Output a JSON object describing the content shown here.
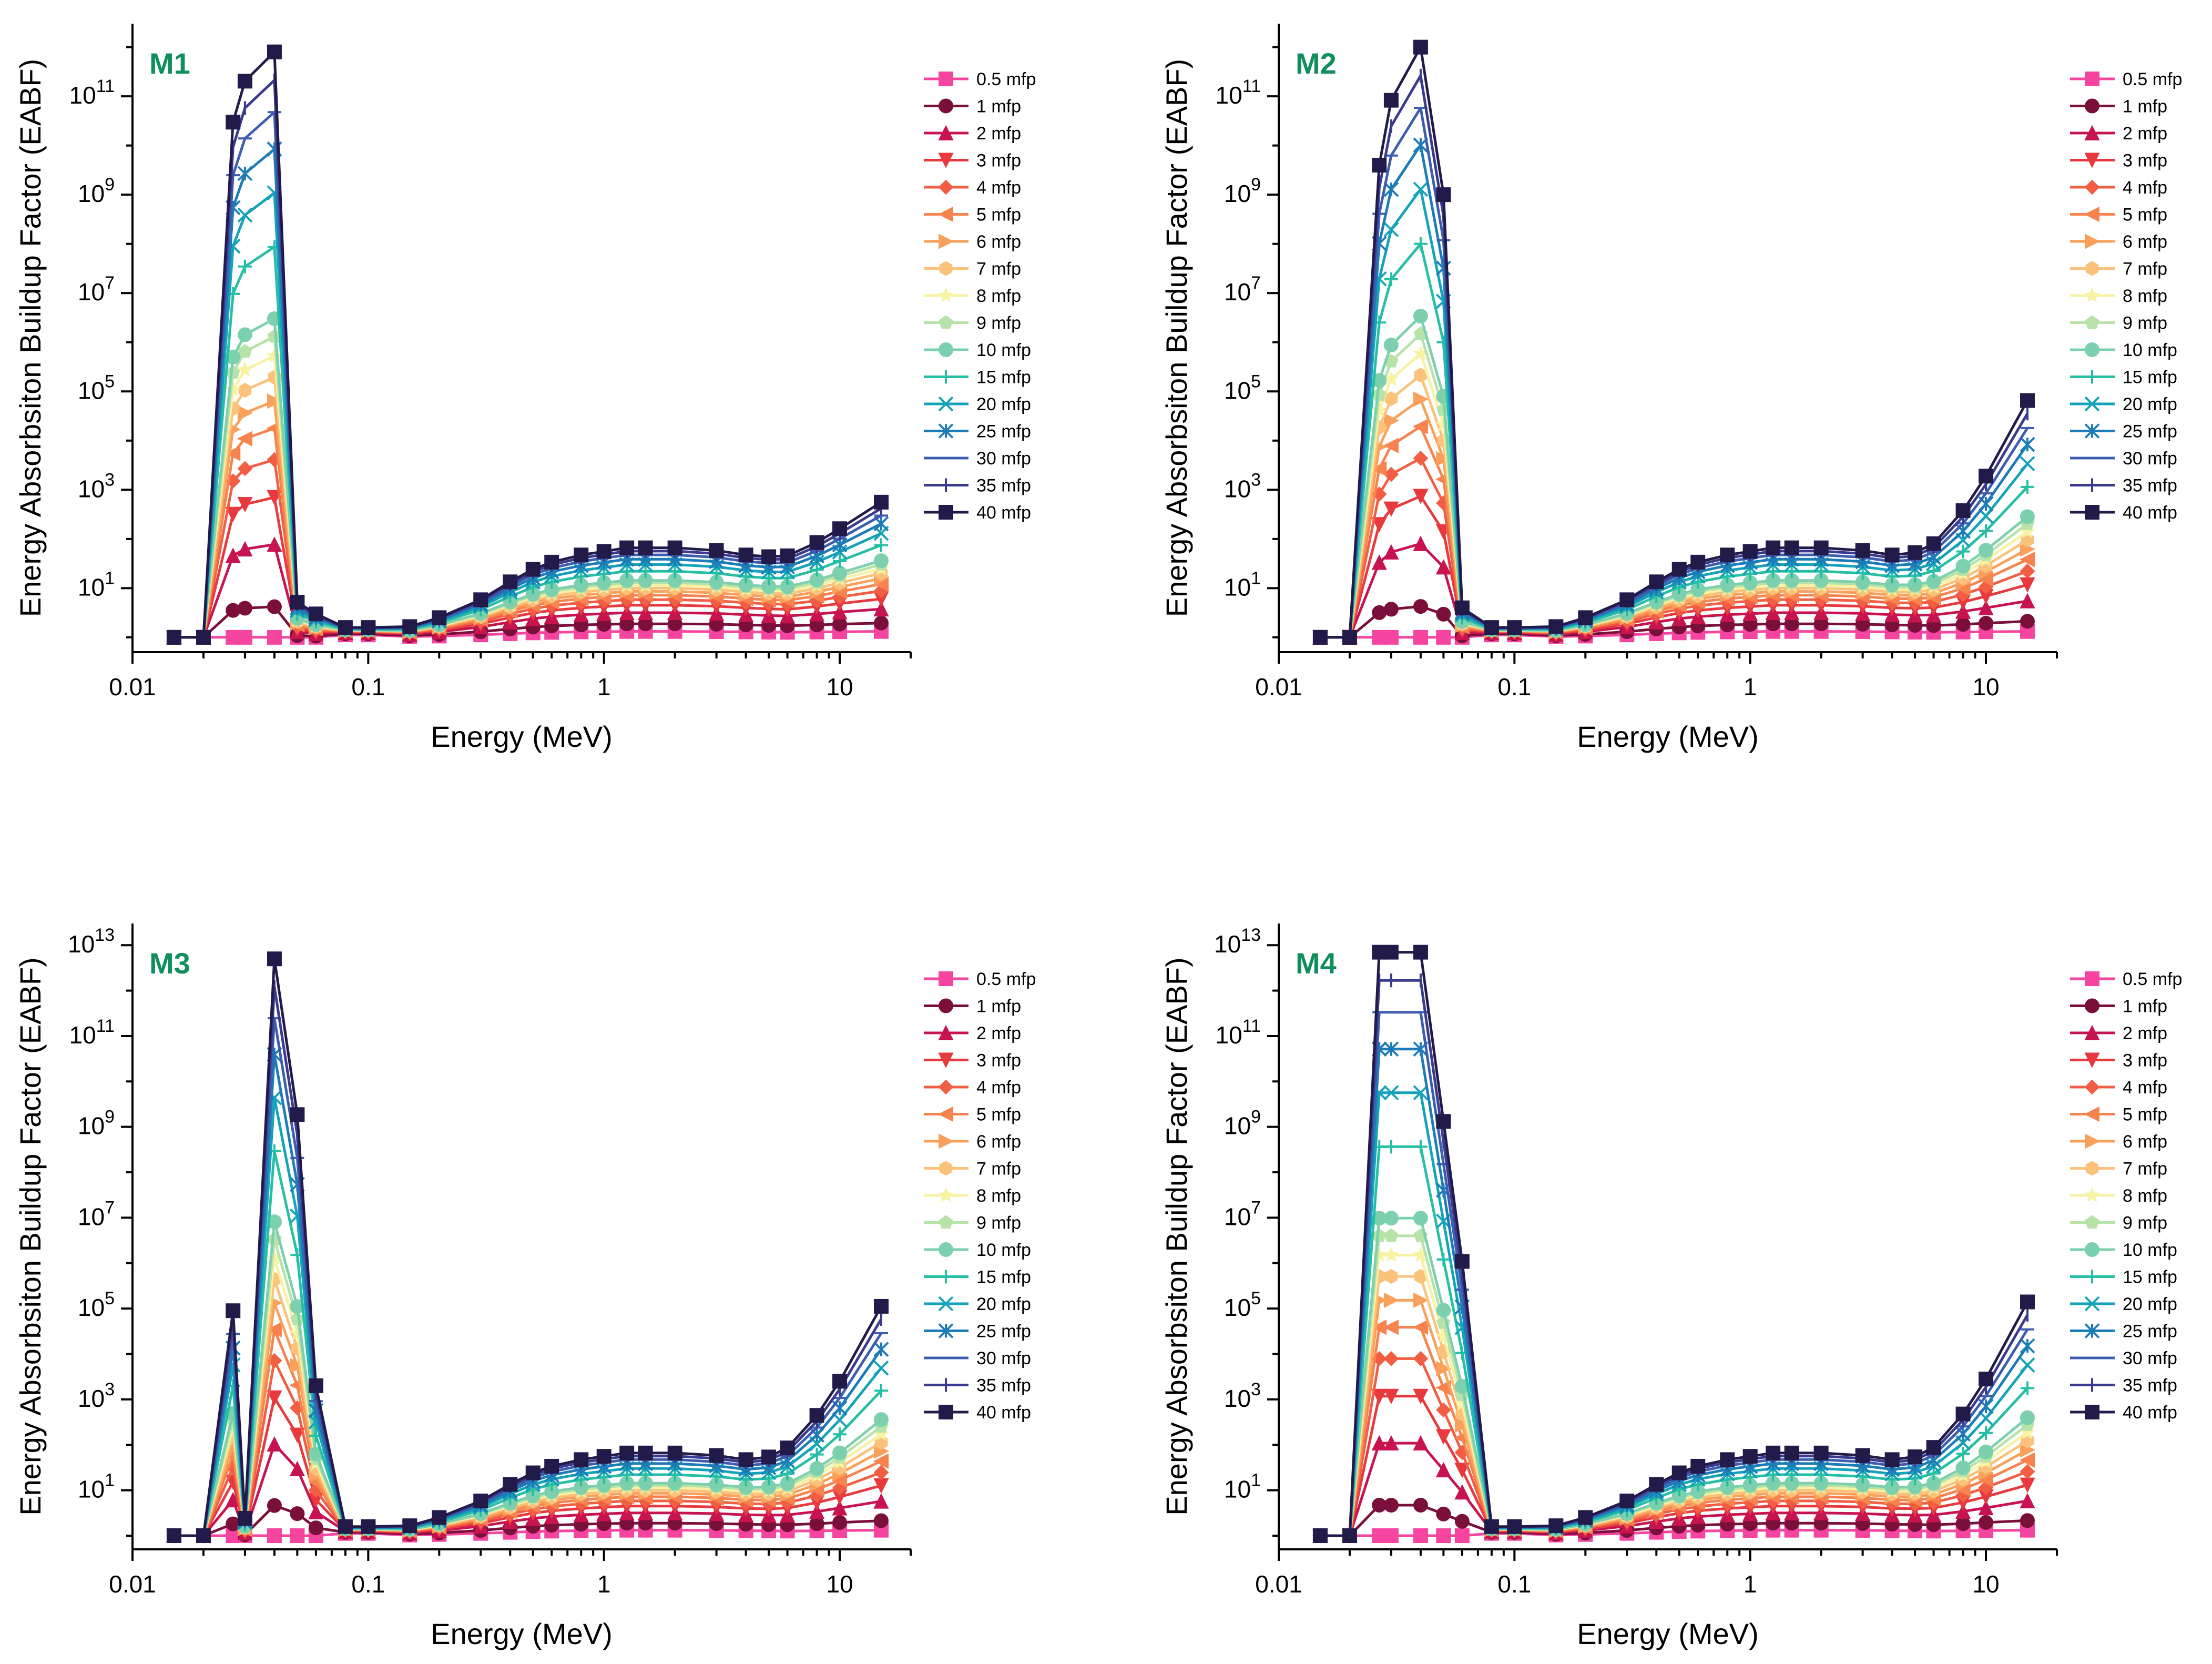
{
  "figure": {
    "panel_label_color": "#0E8F5C"
  },
  "chart_data": [
    {
      "type": "line",
      "label": "M1",
      "xlabel": "Energy (MeV)",
      "ylabel": "Energy Absorbsiton Buildup Factor (EABF)",
      "xscale": "log",
      "yscale": "log",
      "xlim": [
        0.01,
        20
      ],
      "ylim": [
        0.5,
        3000000000000.0
      ],
      "x_ticks": [
        {
          "label": "0.01",
          "v": 0.01
        },
        {
          "label": "0.1",
          "v": 0.1
        },
        {
          "label": "1",
          "v": 1
        },
        {
          "label": "10",
          "v": 10
        }
      ],
      "y_ticks": [
        {
          "base": "10",
          "exp": "1",
          "v": 10
        },
        {
          "base": "10",
          "exp": "3",
          "v": 1000
        },
        {
          "base": "10",
          "exp": "5",
          "v": 100000
        },
        {
          "base": "10",
          "exp": "7",
          "v": 10000000
        },
        {
          "base": "10",
          "exp": "9",
          "v": 1000000000
        },
        {
          "base": "10",
          "exp": "11",
          "v": 100000000000
        }
      ],
      "legend_position": "right",
      "peak_profile": {
        "0.015": 1.0,
        "0.02": 1.0,
        "0.0267": 0.88,
        "0.03": 0.95,
        "0.04": 1.0,
        "0.05": 0.06,
        "0.06": 0.04,
        "0.08": 0.02,
        "0.1": 0.02
      },
      "peak_max_40": 800000000000,
      "high_energy_40": 600
    },
    {
      "type": "line",
      "label": "M2",
      "xlabel": "Energy (MeV)",
      "ylabel": "Energy Absorbsiton Buildup Factor (EABF)",
      "xscale": "log",
      "yscale": "log",
      "xlim": [
        0.01,
        20
      ],
      "ylim": [
        0.5,
        3000000000000.0
      ],
      "x_ticks": [
        {
          "label": "0.01",
          "v": 0.01
        },
        {
          "label": "0.1",
          "v": 0.1
        },
        {
          "label": "1",
          "v": 1
        },
        {
          "label": "10",
          "v": 10
        }
      ],
      "y_ticks": [
        {
          "base": "10",
          "exp": "1",
          "v": 10
        },
        {
          "base": "10",
          "exp": "3",
          "v": 1000
        },
        {
          "base": "10",
          "exp": "5",
          "v": 100000
        },
        {
          "base": "10",
          "exp": "7",
          "v": 10000000
        },
        {
          "base": "10",
          "exp": "9",
          "v": 1000000000
        },
        {
          "base": "10",
          "exp": "11",
          "v": 100000000000
        }
      ],
      "legend_position": "right",
      "peak_profile": {
        "0.015": 1.0,
        "0.02": 1.0,
        "0.0267": 0.8,
        "0.03": 0.91,
        "0.04": 1.0,
        "0.05": 0.75,
        "0.06": 0.05,
        "0.08": 0.02,
        "0.1": 0.02
      },
      "peak_max_40": 1000000000000,
      "high_energy_40": 70000
    },
    {
      "type": "line",
      "label": "M3",
      "xlabel": "Energy (MeV)",
      "ylabel": "Energy Absorbsiton Buildup Factor (EABF)",
      "xscale": "log",
      "yscale": "log",
      "xlim": [
        0.01,
        20
      ],
      "ylim": [
        0.5,
        30000000000000.0
      ],
      "x_ticks": [
        {
          "label": "0.01",
          "v": 0.01
        },
        {
          "label": "0.1",
          "v": 0.1
        },
        {
          "label": "1",
          "v": 1
        },
        {
          "label": "10",
          "v": 10
        }
      ],
      "y_ticks": [
        {
          "base": "10",
          "exp": "1",
          "v": 10
        },
        {
          "base": "10",
          "exp": "3",
          "v": 1000
        },
        {
          "base": "10",
          "exp": "5",
          "v": 100000
        },
        {
          "base": "10",
          "exp": "7",
          "v": 10000000
        },
        {
          "base": "10",
          "exp": "9",
          "v": 1000000000
        },
        {
          "base": "10",
          "exp": "11",
          "v": 100000000000
        },
        {
          "base": "10",
          "exp": "13",
          "v": 10000000000000
        }
      ],
      "legend_position": "right",
      "peak_profile": {
        "0.015": 1.0,
        "0.02": 1.0,
        "0.0267": 0.39,
        "0.03": 0.03,
        "0.04": 1.0,
        "0.05": 0.73,
        "0.06": 0.26,
        "0.08": 0.02,
        "0.1": 0.02
      },
      "peak_max_40": 5000000000000,
      "high_energy_40": 120000
    },
    {
      "type": "line",
      "label": "M4",
      "xlabel": "Energy (MeV)",
      "ylabel": "Energy Absorbsiton Buildup Factor (EABF)",
      "xscale": "log",
      "yscale": "log",
      "xlim": [
        0.01,
        20
      ],
      "ylim": [
        0.5,
        30000000000000.0
      ],
      "x_ticks": [
        {
          "label": "0.01",
          "v": 0.01
        },
        {
          "label": "0.1",
          "v": 0.1
        },
        {
          "label": "1",
          "v": 1
        },
        {
          "label": "10",
          "v": 10
        }
      ],
      "y_ticks": [
        {
          "base": "10",
          "exp": "1",
          "v": 10
        },
        {
          "base": "10",
          "exp": "3",
          "v": 1000
        },
        {
          "base": "10",
          "exp": "5",
          "v": 100000
        },
        {
          "base": "10",
          "exp": "7",
          "v": 10000000
        },
        {
          "base": "10",
          "exp": "9",
          "v": 1000000000
        },
        {
          "base": "10",
          "exp": "11",
          "v": 100000000000
        },
        {
          "base": "10",
          "exp": "13",
          "v": 10000000000000
        }
      ],
      "legend_position": "right",
      "peak_profile": {
        "0.015": 1.0,
        "0.02": 1.0,
        "0.0267": 1.0,
        "0.03": 1.0,
        "0.04": 1.0,
        "0.05": 0.71,
        "0.06": 0.47,
        "0.08": 0.02,
        "0.1": 0.02
      },
      "peak_max_40": 7000000000000,
      "high_energy_40": 150000
    }
  ],
  "energies": [
    0.015,
    0.02,
    0.0267,
    0.03,
    0.04,
    0.05,
    0.06,
    0.08,
    0.1,
    0.15,
    0.2,
    0.3,
    0.4,
    0.5,
    0.6,
    0.8,
    1.0,
    1.25,
    1.5,
    2.0,
    3.0,
    4.0,
    5.0,
    6.0,
    8.0,
    10.0,
    15.0
  ],
  "series": [
    {
      "name": "0.5 mfp",
      "depth": 0.5,
      "color": "#F545A0",
      "marker": "square"
    },
    {
      "name": "1 mfp",
      "depth": 1,
      "color": "#7A0F3A",
      "marker": "circle"
    },
    {
      "name": "2 mfp",
      "depth": 2,
      "color": "#C8144E",
      "marker": "triangle-up"
    },
    {
      "name": "3 mfp",
      "depth": 3,
      "color": "#E8393E",
      "marker": "triangle-down"
    },
    {
      "name": "4 mfp",
      "depth": 4,
      "color": "#F25E43",
      "marker": "diamond"
    },
    {
      "name": "5 mfp",
      "depth": 5,
      "color": "#F7834F",
      "marker": "triangle-left"
    },
    {
      "name": "6 mfp",
      "depth": 6,
      "color": "#F9A15A",
      "marker": "triangle-right"
    },
    {
      "name": "7 mfp",
      "depth": 7,
      "color": "#FBC27C",
      "marker": "hexagon"
    },
    {
      "name": "8 mfp",
      "depth": 8,
      "color": "#F8F2A3",
      "marker": "star"
    },
    {
      "name": "9 mfp",
      "depth": 9,
      "color": "#B7E3A8",
      "marker": "pentagon"
    },
    {
      "name": "10 mfp",
      "depth": 10,
      "color": "#7DD0AE",
      "marker": "sphere"
    },
    {
      "name": "15 mfp",
      "depth": 15,
      "color": "#27BFA4",
      "marker": "plus"
    },
    {
      "name": "20 mfp",
      "depth": 20,
      "color": "#14A3B8",
      "marker": "x"
    },
    {
      "name": "25 mfp",
      "depth": 25,
      "color": "#1C7CB8",
      "marker": "asterisk"
    },
    {
      "name": "30 mfp",
      "depth": 30,
      "color": "#3C5DB0",
      "marker": "dash"
    },
    {
      "name": "35 mfp",
      "depth": 35,
      "color": "#3A3A8E",
      "marker": "vbar"
    },
    {
      "name": "40 mfp",
      "depth": 40,
      "color": "#221B4A",
      "marker": "square"
    }
  ]
}
